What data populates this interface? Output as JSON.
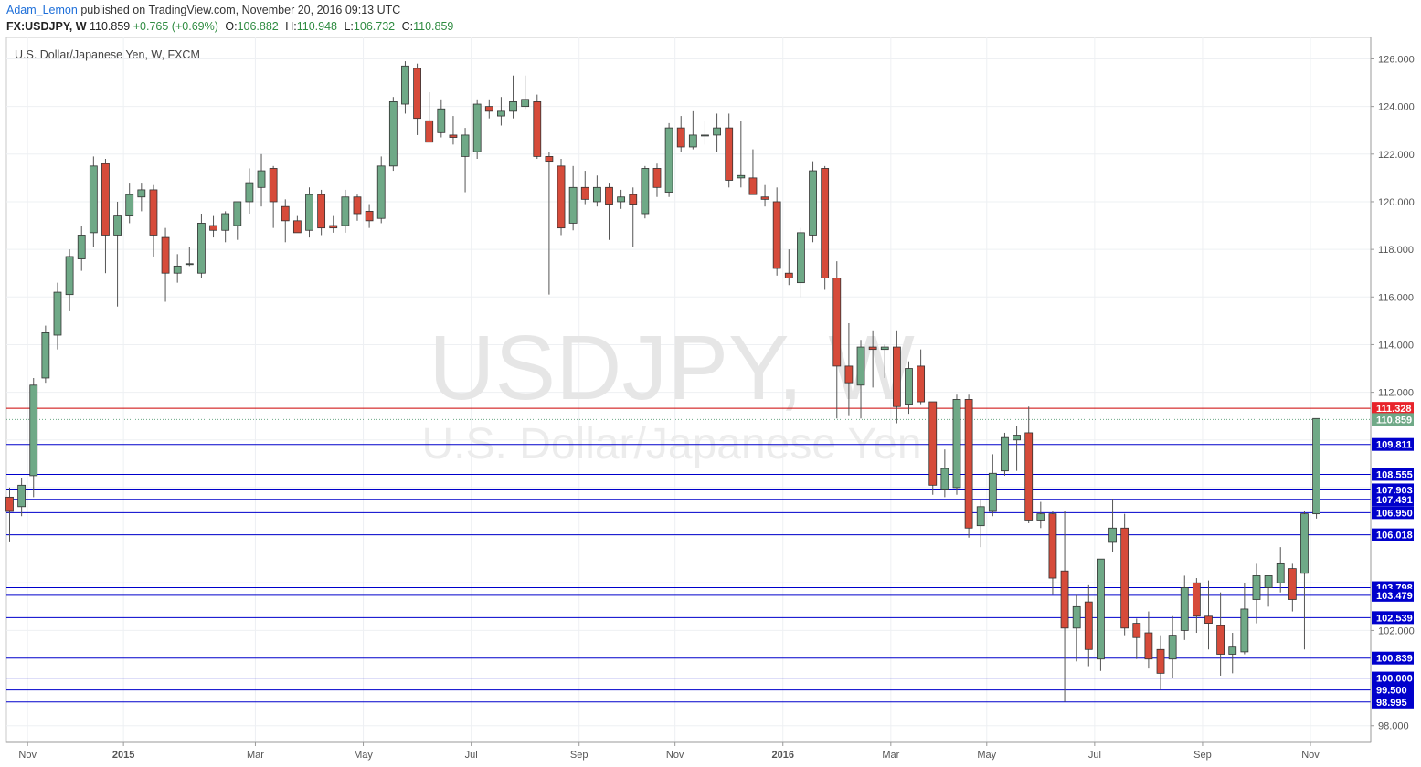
{
  "header": {
    "author": "Adam_Lemon",
    "published_text": "published on TradingView.com, November 20, 2016 09:13 UTC",
    "symbol": "FX:USDJPY, W",
    "last": "110.859",
    "change": "+0.765 (+0.69%)",
    "o_label": "O:",
    "o": "106.882",
    "h_label": "H:",
    "h": "110.948",
    "l_label": "L:",
    "l": "106.732",
    "c_label": "C:",
    "c": "110.859"
  },
  "chart_data": {
    "type": "candlestick",
    "title": "U.S. Dollar/Japanese Yen, W, FXCM",
    "watermark": {
      "symbol": "USDJPY, W",
      "name": "U.S. Dollar/Japanese Yen"
    },
    "ylim": [
      97.3,
      126.9
    ],
    "y_ticks": [
      "98.000",
      "102.000",
      "112.000",
      "114.000",
      "116.000",
      "118.000",
      "120.000",
      "122.000",
      "124.000",
      "126.000"
    ],
    "x_labels": [
      "Nov",
      "2015",
      "Mar",
      "May",
      "Jul",
      "Sep",
      "Nov",
      "2016",
      "Mar",
      "May",
      "Jul",
      "Sep",
      "Nov"
    ],
    "x_label_week": [
      1.5,
      9.5,
      20.5,
      29.5,
      38.5,
      47.5,
      55.5,
      64.5,
      73.5,
      81.5,
      90.5,
      99.5,
      108.5
    ],
    "colors": {
      "up": "#6fa987",
      "down": "#d64b3a",
      "wick": "#555555",
      "level_line": "#0000cc",
      "level_tag": "#0000cc",
      "current_line": "#cc0000",
      "current_tag": "#e8242b",
      "last_tag": "#6fa987"
    },
    "levels": [
      109.811,
      108.555,
      107.903,
      107.491,
      106.95,
      106.018,
      103.798,
      103.479,
      102.539,
      100.839,
      100.0,
      99.5,
      98.995
    ],
    "level_labels": [
      "109.811",
      "108.555",
      "107.903",
      "107.491",
      "106.950",
      "106.018",
      "103.798",
      "103.479",
      "102.539",
      "100.839",
      "100.000",
      "99.500",
      "98.995"
    ],
    "current_level": 111.328,
    "current_label": "111.328",
    "last_price": 110.859,
    "last_label": "110.859",
    "candles": [
      {
        "o": 107.6,
        "h": 108.0,
        "l": 105.7,
        "c": 107.0
      },
      {
        "o": 107.2,
        "h": 108.4,
        "l": 106.8,
        "c": 108.1
      },
      {
        "o": 108.5,
        "h": 112.6,
        "l": 107.6,
        "c": 112.3
      },
      {
        "o": 112.6,
        "h": 114.8,
        "l": 112.4,
        "c": 114.5
      },
      {
        "o": 114.4,
        "h": 116.6,
        "l": 113.8,
        "c": 116.2
      },
      {
        "o": 116.1,
        "h": 118.0,
        "l": 115.4,
        "c": 117.7
      },
      {
        "o": 117.6,
        "h": 119.0,
        "l": 117.1,
        "c": 118.6
      },
      {
        "o": 118.7,
        "h": 121.9,
        "l": 118.1,
        "c": 121.5
      },
      {
        "o": 121.6,
        "h": 121.8,
        "l": 117.0,
        "c": 118.6
      },
      {
        "o": 118.6,
        "h": 120.0,
        "l": 115.6,
        "c": 119.4
      },
      {
        "o": 119.4,
        "h": 120.8,
        "l": 119.1,
        "c": 120.3
      },
      {
        "o": 120.2,
        "h": 120.8,
        "l": 119.6,
        "c": 120.5
      },
      {
        "o": 120.5,
        "h": 120.7,
        "l": 117.7,
        "c": 118.6
      },
      {
        "o": 118.5,
        "h": 118.9,
        "l": 115.8,
        "c": 117.0
      },
      {
        "o": 117.0,
        "h": 117.8,
        "l": 116.6,
        "c": 117.3
      },
      {
        "o": 117.4,
        "h": 118.1,
        "l": 117.3,
        "c": 117.4
      },
      {
        "o": 117.0,
        "h": 119.5,
        "l": 116.8,
        "c": 119.1
      },
      {
        "o": 119.0,
        "h": 119.4,
        "l": 118.5,
        "c": 118.8
      },
      {
        "o": 118.8,
        "h": 119.6,
        "l": 118.3,
        "c": 119.5
      },
      {
        "o": 119.0,
        "h": 120.0,
        "l": 118.4,
        "c": 120.0
      },
      {
        "o": 120.0,
        "h": 121.4,
        "l": 119.5,
        "c": 120.8
      },
      {
        "o": 120.6,
        "h": 122.0,
        "l": 119.8,
        "c": 121.3
      },
      {
        "o": 121.4,
        "h": 121.5,
        "l": 118.9,
        "c": 120.0
      },
      {
        "o": 119.8,
        "h": 120.1,
        "l": 118.3,
        "c": 119.2
      },
      {
        "o": 119.2,
        "h": 119.4,
        "l": 118.8,
        "c": 118.7
      },
      {
        "o": 118.8,
        "h": 120.6,
        "l": 118.5,
        "c": 120.3
      },
      {
        "o": 120.3,
        "h": 120.5,
        "l": 118.6,
        "c": 118.9
      },
      {
        "o": 119.0,
        "h": 119.4,
        "l": 118.7,
        "c": 118.9
      },
      {
        "o": 119.0,
        "h": 120.5,
        "l": 118.7,
        "c": 120.2
      },
      {
        "o": 120.2,
        "h": 120.3,
        "l": 119.2,
        "c": 119.5
      },
      {
        "o": 119.6,
        "h": 119.9,
        "l": 118.9,
        "c": 119.2
      },
      {
        "o": 119.3,
        "h": 121.9,
        "l": 119.1,
        "c": 121.5
      },
      {
        "o": 121.5,
        "h": 124.4,
        "l": 121.3,
        "c": 124.2
      },
      {
        "o": 124.1,
        "h": 125.9,
        "l": 123.7,
        "c": 125.7
      },
      {
        "o": 125.6,
        "h": 125.8,
        "l": 122.8,
        "c": 123.5
      },
      {
        "o": 123.4,
        "h": 124.6,
        "l": 122.5,
        "c": 122.5
      },
      {
        "o": 122.9,
        "h": 124.3,
        "l": 122.7,
        "c": 123.9
      },
      {
        "o": 122.8,
        "h": 123.6,
        "l": 122.4,
        "c": 122.7
      },
      {
        "o": 121.9,
        "h": 123.1,
        "l": 120.4,
        "c": 122.8
      },
      {
        "o": 122.1,
        "h": 124.3,
        "l": 121.8,
        "c": 124.1
      },
      {
        "o": 124.0,
        "h": 124.3,
        "l": 123.5,
        "c": 123.8
      },
      {
        "o": 123.6,
        "h": 124.4,
        "l": 123.2,
        "c": 123.8
      },
      {
        "o": 123.8,
        "h": 125.3,
        "l": 123.5,
        "c": 124.2
      },
      {
        "o": 124.0,
        "h": 125.3,
        "l": 123.9,
        "c": 124.3
      },
      {
        "o": 124.2,
        "h": 124.5,
        "l": 121.8,
        "c": 121.9
      },
      {
        "o": 121.9,
        "h": 122.1,
        "l": 116.1,
        "c": 121.7
      },
      {
        "o": 121.5,
        "h": 121.8,
        "l": 118.6,
        "c": 118.9
      },
      {
        "o": 119.1,
        "h": 121.5,
        "l": 118.8,
        "c": 120.6
      },
      {
        "o": 120.6,
        "h": 121.3,
        "l": 119.9,
        "c": 120.1
      },
      {
        "o": 120.0,
        "h": 121.1,
        "l": 119.8,
        "c": 120.6
      },
      {
        "o": 120.6,
        "h": 120.8,
        "l": 118.4,
        "c": 119.9
      },
      {
        "o": 120.0,
        "h": 120.5,
        "l": 119.7,
        "c": 120.2
      },
      {
        "o": 120.3,
        "h": 120.6,
        "l": 118.1,
        "c": 119.9
      },
      {
        "o": 119.5,
        "h": 121.5,
        "l": 119.3,
        "c": 121.4
      },
      {
        "o": 121.4,
        "h": 121.6,
        "l": 120.2,
        "c": 120.6
      },
      {
        "o": 120.4,
        "h": 123.3,
        "l": 120.2,
        "c": 123.1
      },
      {
        "o": 123.1,
        "h": 123.6,
        "l": 122.1,
        "c": 122.3
      },
      {
        "o": 122.3,
        "h": 123.8,
        "l": 122.2,
        "c": 122.8
      },
      {
        "o": 122.8,
        "h": 123.4,
        "l": 122.4,
        "c": 122.8
      },
      {
        "o": 122.8,
        "h": 123.7,
        "l": 122.1,
        "c": 123.1
      },
      {
        "o": 123.1,
        "h": 123.7,
        "l": 120.6,
        "c": 120.9
      },
      {
        "o": 121.0,
        "h": 123.4,
        "l": 120.6,
        "c": 121.1
      },
      {
        "o": 121.0,
        "h": 122.2,
        "l": 120.3,
        "c": 120.3
      },
      {
        "o": 120.2,
        "h": 120.7,
        "l": 119.8,
        "c": 120.1
      },
      {
        "o": 120.0,
        "h": 120.6,
        "l": 116.9,
        "c": 117.2
      },
      {
        "o": 117.0,
        "h": 118.0,
        "l": 116.5,
        "c": 116.8
      },
      {
        "o": 116.6,
        "h": 118.9,
        "l": 116.0,
        "c": 118.7
      },
      {
        "o": 118.6,
        "h": 121.7,
        "l": 118.3,
        "c": 121.3
      },
      {
        "o": 121.4,
        "h": 121.5,
        "l": 116.3,
        "c": 116.8
      },
      {
        "o": 116.8,
        "h": 117.5,
        "l": 110.9,
        "c": 113.1
      },
      {
        "o": 113.1,
        "h": 114.9,
        "l": 111.0,
        "c": 112.4
      },
      {
        "o": 112.3,
        "h": 114.2,
        "l": 110.9,
        "c": 113.9
      },
      {
        "o": 113.9,
        "h": 114.6,
        "l": 112.2,
        "c": 113.8
      },
      {
        "o": 113.8,
        "h": 114.0,
        "l": 112.6,
        "c": 113.9
      },
      {
        "o": 113.9,
        "h": 114.6,
        "l": 110.7,
        "c": 111.4
      },
      {
        "o": 111.5,
        "h": 113.3,
        "l": 111.1,
        "c": 113.0
      },
      {
        "o": 113.1,
        "h": 113.8,
        "l": 111.5,
        "c": 111.6
      },
      {
        "o": 111.6,
        "h": 111.6,
        "l": 107.7,
        "c": 108.1
      },
      {
        "o": 107.9,
        "h": 109.6,
        "l": 107.6,
        "c": 108.8
      },
      {
        "o": 108.0,
        "h": 111.9,
        "l": 107.7,
        "c": 111.7
      },
      {
        "o": 111.7,
        "h": 111.9,
        "l": 105.9,
        "c": 106.3
      },
      {
        "o": 106.4,
        "h": 107.5,
        "l": 105.5,
        "c": 107.2
      },
      {
        "o": 107.0,
        "h": 109.4,
        "l": 106.8,
        "c": 108.6
      },
      {
        "o": 108.7,
        "h": 110.3,
        "l": 108.5,
        "c": 110.1
      },
      {
        "o": 110.0,
        "h": 110.6,
        "l": 108.7,
        "c": 110.2
      },
      {
        "o": 110.3,
        "h": 111.4,
        "l": 106.5,
        "c": 106.6
      },
      {
        "o": 106.6,
        "h": 107.4,
        "l": 106.3,
        "c": 106.9
      },
      {
        "o": 106.9,
        "h": 107.0,
        "l": 103.5,
        "c": 104.2
      },
      {
        "o": 104.5,
        "h": 107.0,
        "l": 99.0,
        "c": 102.1
      },
      {
        "o": 102.1,
        "h": 103.5,
        "l": 100.7,
        "c": 103.0
      },
      {
        "o": 103.2,
        "h": 103.9,
        "l": 100.5,
        "c": 101.2
      },
      {
        "o": 100.8,
        "h": 105.0,
        "l": 100.3,
        "c": 105.0
      },
      {
        "o": 105.7,
        "h": 107.5,
        "l": 105.3,
        "c": 106.3
      },
      {
        "o": 106.3,
        "h": 106.9,
        "l": 101.8,
        "c": 102.1
      },
      {
        "o": 102.3,
        "h": 102.5,
        "l": 100.8,
        "c": 101.7
      },
      {
        "o": 101.9,
        "h": 102.8,
        "l": 100.4,
        "c": 100.8
      },
      {
        "o": 101.2,
        "h": 101.8,
        "l": 99.5,
        "c": 100.2
      },
      {
        "o": 100.8,
        "h": 102.6,
        "l": 100.0,
        "c": 101.8
      },
      {
        "o": 102.0,
        "h": 104.3,
        "l": 101.6,
        "c": 103.8
      },
      {
        "o": 104.0,
        "h": 104.2,
        "l": 101.9,
        "c": 102.6
      },
      {
        "o": 102.6,
        "h": 104.1,
        "l": 101.2,
        "c": 102.3
      },
      {
        "o": 102.2,
        "h": 103.6,
        "l": 100.1,
        "c": 101.0
      },
      {
        "o": 101.0,
        "h": 101.9,
        "l": 100.2,
        "c": 101.3
      },
      {
        "o": 101.1,
        "h": 104.0,
        "l": 101.0,
        "c": 102.9
      },
      {
        "o": 103.3,
        "h": 104.8,
        "l": 102.3,
        "c": 104.3
      },
      {
        "o": 103.8,
        "h": 104.2,
        "l": 103.0,
        "c": 104.3
      },
      {
        "o": 104.0,
        "h": 105.5,
        "l": 103.6,
        "c": 104.8
      },
      {
        "o": 104.6,
        "h": 104.8,
        "l": 102.8,
        "c": 103.3
      },
      {
        "o": 104.4,
        "h": 107.0,
        "l": 101.2,
        "c": 106.9
      },
      {
        "o": 106.9,
        "h": 110.9,
        "l": 106.7,
        "c": 110.9
      }
    ]
  }
}
